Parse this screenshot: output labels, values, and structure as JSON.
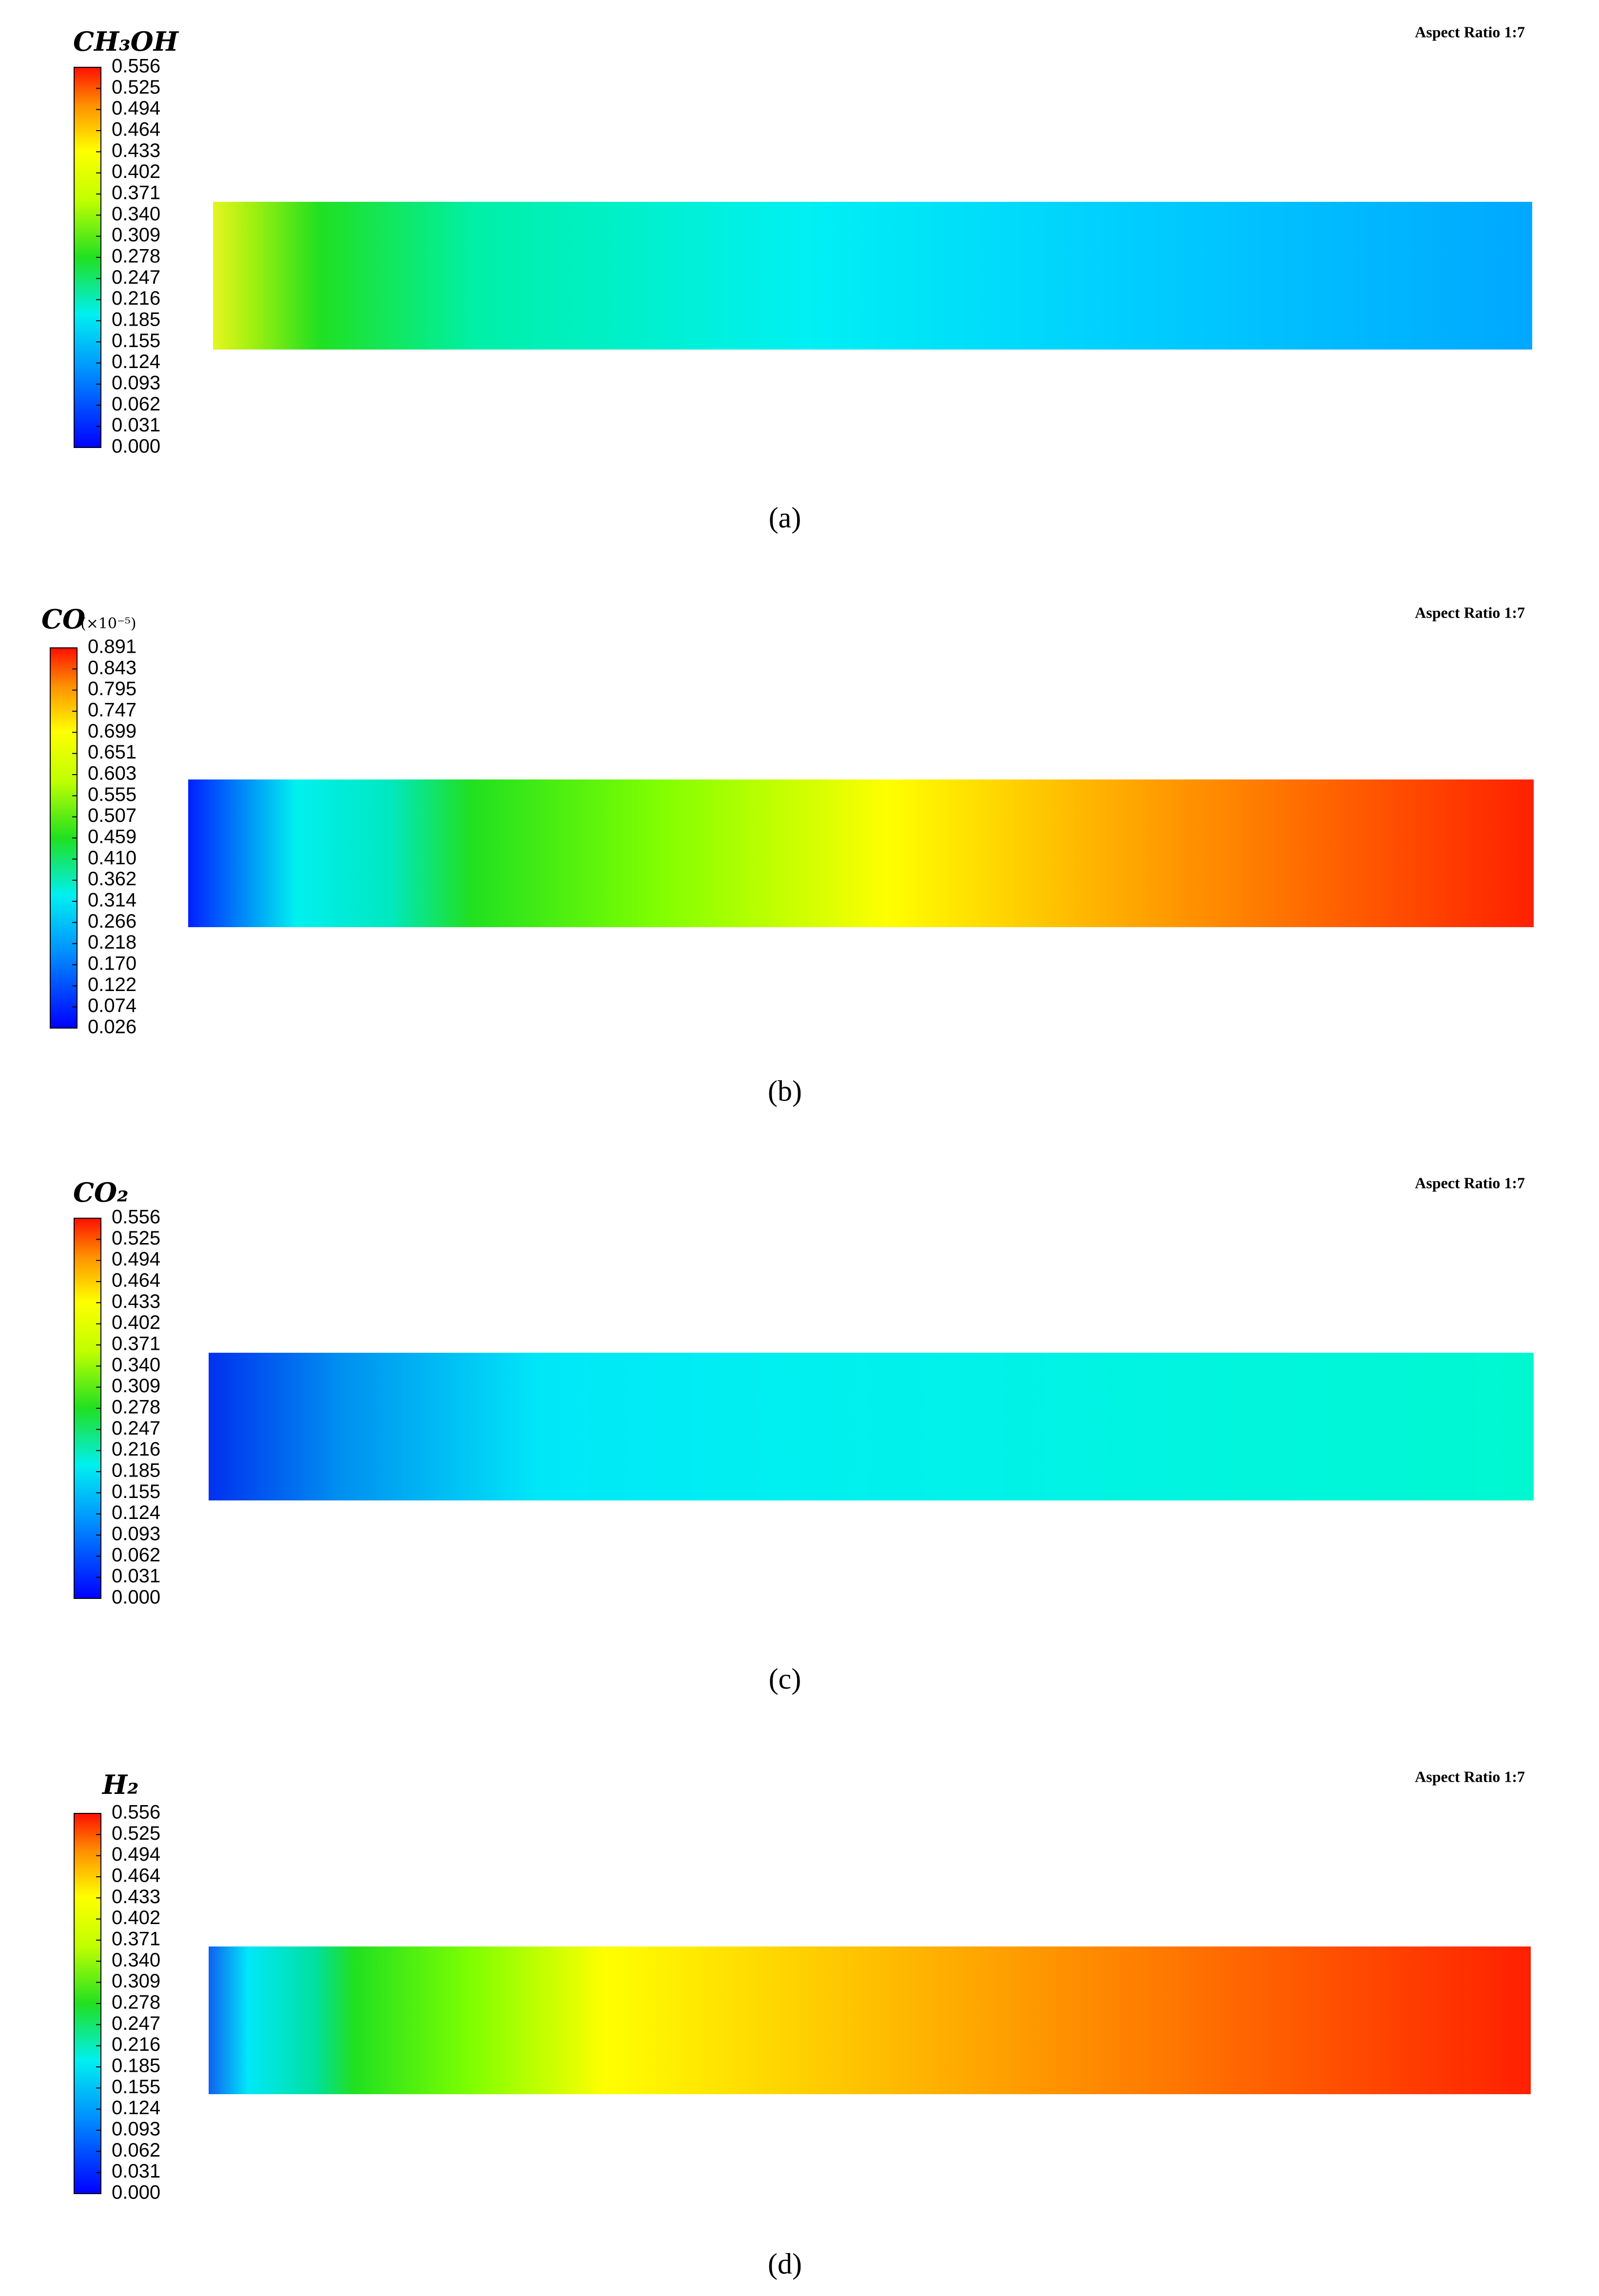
{
  "panels": [
    {
      "title": "CH₃OH",
      "aspect": "Aspect Ratio 1:7",
      "ticks": [
        "0.556",
        "0.525",
        "0.494",
        "0.464",
        "0.433",
        "0.402",
        "0.371",
        "0.340",
        "0.309",
        "0.278",
        "0.247",
        "0.216",
        "0.185",
        "0.155",
        "0.124",
        "0.093",
        "0.062",
        "0.031",
        "0.000"
      ],
      "caption": "(a)"
    },
    {
      "title": "CO",
      "unit": "(×10⁻⁵)",
      "aspect": "Aspect Ratio 1:7",
      "ticks": [
        "0.891",
        "0.843",
        "0.795",
        "0.747",
        "0.699",
        "0.651",
        "0.603",
        "0.555",
        "0.507",
        "0.459",
        "0.410",
        "0.362",
        "0.314",
        "0.266",
        "0.218",
        "0.170",
        "0.122",
        "0.074",
        "0.026"
      ],
      "caption": "(b)"
    },
    {
      "title": "CO₂",
      "aspect": "Aspect Ratio 1:7",
      "ticks": [
        "0.556",
        "0.525",
        "0.494",
        "0.464",
        "0.433",
        "0.402",
        "0.371",
        "0.340",
        "0.309",
        "0.278",
        "0.247",
        "0.216",
        "0.185",
        "0.155",
        "0.124",
        "0.093",
        "0.062",
        "0.031",
        "0.000"
      ],
      "caption": "(c)"
    },
    {
      "title": "H₂",
      "aspect": "Aspect Ratio 1:7",
      "ticks": [
        "0.556",
        "0.525",
        "0.494",
        "0.464",
        "0.433",
        "0.402",
        "0.371",
        "0.340",
        "0.309",
        "0.278",
        "0.247",
        "0.216",
        "0.185",
        "0.155",
        "0.124",
        "0.093",
        "0.062",
        "0.031",
        "0.000"
      ],
      "caption": "(d)"
    }
  ]
}
